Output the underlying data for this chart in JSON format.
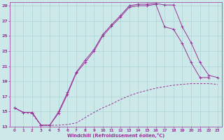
{
  "xlabel": "Windchill (Refroidissement éolien,°C)",
  "bg_color": "#cce8e8",
  "line_color": "#993399",
  "xlim": [
    -0.5,
    23.5
  ],
  "ylim": [
    13,
    29.5
  ],
  "xticks": [
    0,
    1,
    2,
    3,
    4,
    5,
    6,
    7,
    8,
    9,
    10,
    11,
    12,
    13,
    14,
    15,
    16,
    17,
    18,
    19,
    20,
    21,
    22,
    23
  ],
  "yticks": [
    13,
    15,
    17,
    19,
    21,
    23,
    25,
    27,
    29
  ],
  "grid_color": "#aad4d4",
  "line1_x": [
    0,
    1,
    2,
    3,
    4,
    5,
    6,
    7,
    8,
    9,
    10,
    11,
    12,
    13,
    14,
    15,
    16,
    17,
    18,
    19,
    20,
    21,
    22,
    23
  ],
  "line1_y": [
    15.5,
    14.9,
    14.9,
    13.2,
    13.2,
    15.0,
    17.5,
    20.2,
    21.8,
    23.2,
    25.2,
    26.5,
    27.7,
    29.0,
    29.2,
    29.2,
    29.3,
    29.1,
    29.1,
    26.2,
    24.1,
    21.5,
    19.8,
    19.5
  ],
  "line2_x": [
    0,
    1,
    2,
    3,
    4,
    5,
    6,
    7,
    8,
    9,
    10,
    11,
    12,
    13,
    14,
    15,
    16,
    17,
    18,
    19,
    20,
    21,
    22,
    23
  ],
  "line2_y": [
    15.5,
    14.9,
    14.9,
    13.2,
    13.2,
    14.8,
    17.3,
    20.1,
    21.5,
    23.0,
    25.0,
    26.3,
    27.5,
    28.8,
    29.0,
    29.0,
    29.2,
    26.2,
    25.9,
    24.0,
    21.5,
    19.5,
    19.5,
    null
  ],
  "line3_x": [
    0,
    1,
    2,
    3,
    4,
    5,
    6,
    7,
    8,
    9,
    10,
    11,
    12,
    13,
    14,
    15,
    16,
    17,
    18,
    19,
    20,
    21,
    22,
    23
  ],
  "line3_y": [
    15.5,
    14.9,
    14.7,
    13.2,
    13.2,
    13.2,
    13.3,
    13.5,
    14.2,
    14.9,
    15.5,
    16.0,
    16.6,
    17.1,
    17.5,
    17.8,
    18.1,
    18.3,
    18.5,
    18.6,
    18.7,
    18.7,
    18.7,
    18.6
  ]
}
